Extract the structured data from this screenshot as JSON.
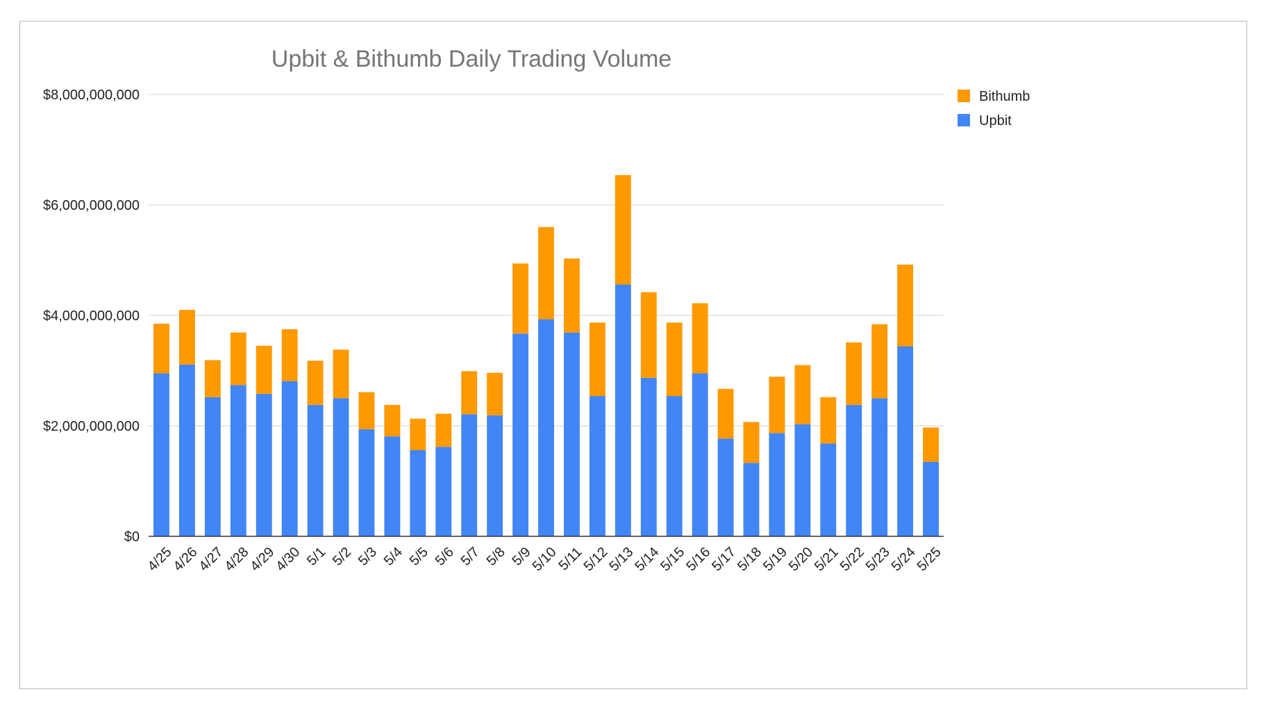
{
  "chart_data": {
    "type": "bar",
    "stacked": true,
    "title": "Upbit & Bithumb Daily Trading Volume",
    "xlabel": "",
    "ylabel": "",
    "ylim": [
      0,
      8000000000
    ],
    "yticks": [
      0,
      2000000000,
      4000000000,
      6000000000,
      8000000000
    ],
    "ytick_labels": [
      "$0",
      "$2,000,000,000",
      "$4,000,000,000",
      "$6,000,000,000",
      "$8,000,000,000"
    ],
    "grid": true,
    "legend_position": "top-right",
    "categories": [
      "4/25",
      "4/26",
      "4/27",
      "4/28",
      "4/29",
      "4/30",
      "5/1",
      "5/2",
      "5/3",
      "5/4",
      "5/5",
      "5/6",
      "5/7",
      "5/8",
      "5/9",
      "5/10",
      "5/11",
      "5/12",
      "5/13",
      "5/14",
      "5/15",
      "5/16",
      "5/17",
      "5/18",
      "5/19",
      "5/20",
      "5/21",
      "5/22",
      "5/23",
      "5/24",
      "5/25"
    ],
    "series": [
      {
        "name": "Upbit",
        "color": "#4285F4",
        "values": [
          2950000000,
          3110000000,
          2520000000,
          2740000000,
          2580000000,
          2810000000,
          2380000000,
          2500000000,
          1940000000,
          1810000000,
          1560000000,
          1620000000,
          2210000000,
          2190000000,
          3670000000,
          3930000000,
          3690000000,
          2540000000,
          4560000000,
          2870000000,
          2540000000,
          2950000000,
          1770000000,
          1330000000,
          1870000000,
          2030000000,
          1680000000,
          2380000000,
          2500000000,
          3440000000,
          1350000000
        ]
      },
      {
        "name": "Bithumb",
        "color": "#FF9900",
        "values": [
          900000000,
          990000000,
          670000000,
          950000000,
          870000000,
          940000000,
          800000000,
          880000000,
          670000000,
          570000000,
          570000000,
          600000000,
          780000000,
          770000000,
          1270000000,
          1670000000,
          1340000000,
          1330000000,
          1980000000,
          1550000000,
          1330000000,
          1270000000,
          900000000,
          740000000,
          1020000000,
          1070000000,
          840000000,
          1130000000,
          1340000000,
          1480000000,
          620000000
        ]
      }
    ],
    "legend": [
      {
        "name": "Bithumb",
        "color": "#FF9900"
      },
      {
        "name": "Upbit",
        "color": "#4285F4"
      }
    ]
  }
}
